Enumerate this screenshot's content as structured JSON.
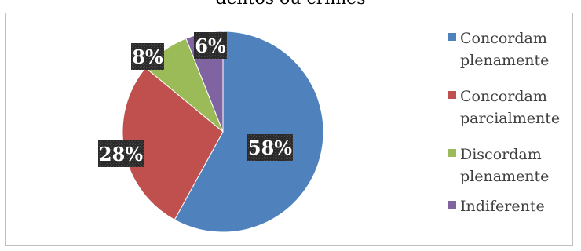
{
  "chart_data": {
    "type": "pie",
    "title": "delitos ou crimes",
    "categories": [
      "Concordam plenamente",
      "Concordam parcialmente",
      "Discordam plenamente",
      "Indiferente"
    ],
    "values": [
      58,
      28,
      8,
      6
    ],
    "labels": [
      "58%",
      "28%",
      "8%",
      "6%"
    ],
    "colors": [
      "#4f81bd",
      "#c0504d",
      "#9bbb59",
      "#8064a2"
    ],
    "legend": {
      "placement": "right",
      "entries": [
        [
          "Concordam",
          "plenamente"
        ],
        [
          "Concordam",
          "parcialmente"
        ],
        [
          "Discordam",
          "plenamente"
        ],
        [
          "Indiferente"
        ]
      ]
    }
  }
}
